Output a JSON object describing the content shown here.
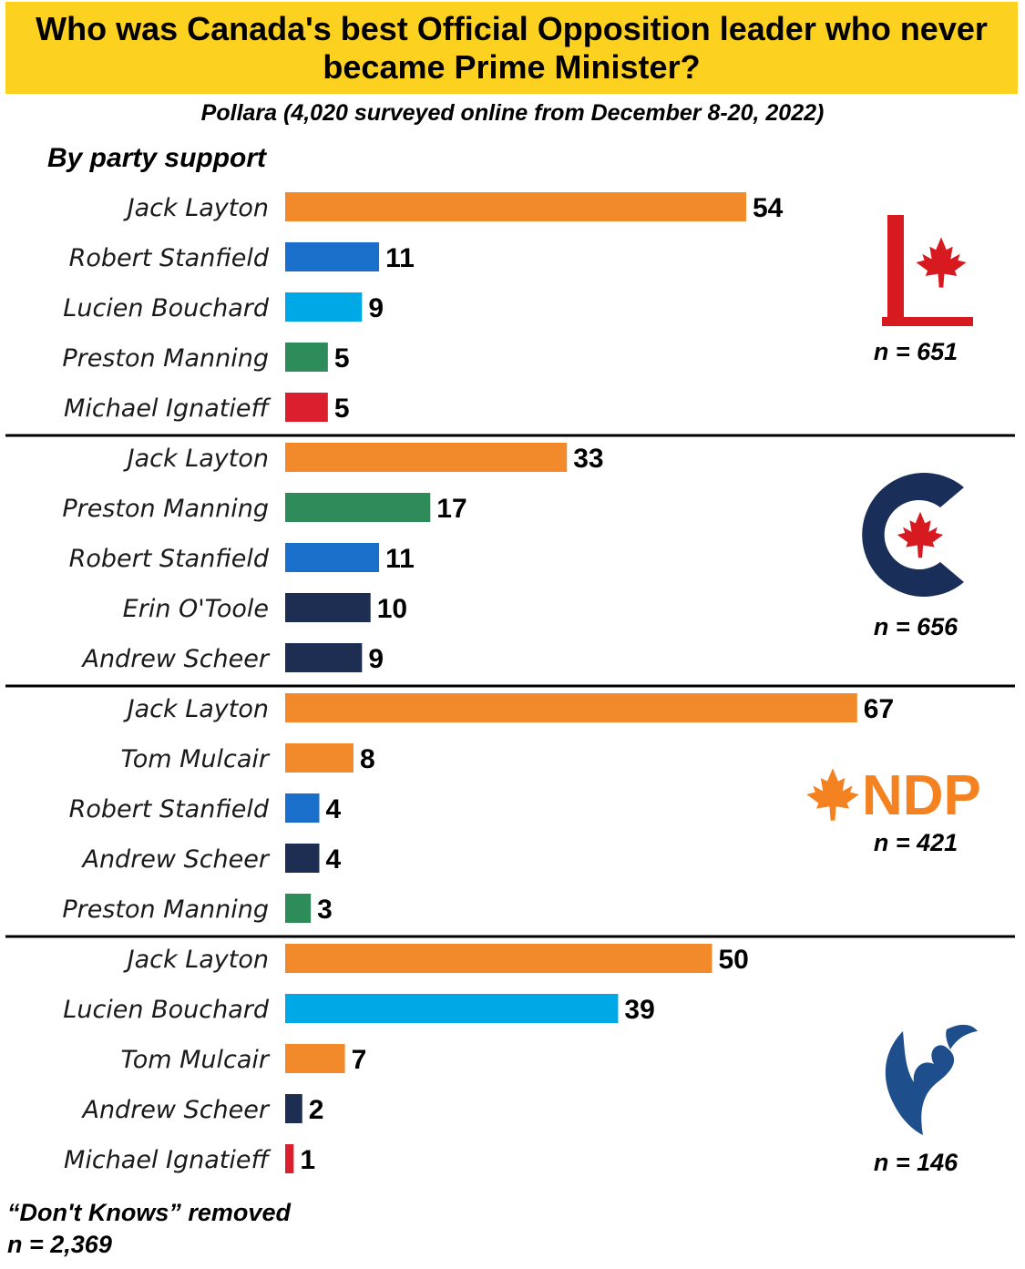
{
  "header": {
    "title": "Who was Canada's best Official Opposition leader who never became Prime Minister?",
    "subtitle": "Pollara (4,020 surveyed online from December 8-20, 2022)",
    "section_label": "By party support"
  },
  "footnotes": {
    "dont_knows": "“Don't Knows” removed",
    "total_n": "n = 2,369"
  },
  "colors": {
    "orange": "#f28a2b",
    "blue": "#1a6fcb",
    "lightblue": "#00a9e6",
    "green": "#2e8c5a",
    "red": "#dc1f2e",
    "navy": "#1e2d52",
    "title_bg": "#fcd11f",
    "liberal_red": "#d71920",
    "cpc_navy": "#1a2e5a",
    "ndp_orange": "#f58220",
    "bloc_blue": "#1f4e8c"
  },
  "chart_data": {
    "type": "bar",
    "orientation": "horizontal",
    "title": "Who was Canada's best Official Opposition leader who never became Prime Minister?",
    "subtitle": "Pollara (4,020 surveyed online from December 8-20, 2022)",
    "xlim": [
      0,
      70
    ],
    "grid": false,
    "panels": [
      {
        "logo": "liberal-logo",
        "n_label": "n = 651",
        "bars": [
          {
            "label": "Jack Layton",
            "value": 54,
            "color": "orange"
          },
          {
            "label": "Robert Stanfield",
            "value": 11,
            "color": "blue"
          },
          {
            "label": "Lucien Bouchard",
            "value": 9,
            "color": "lightblue"
          },
          {
            "label": "Preston Manning",
            "value": 5,
            "color": "green"
          },
          {
            "label": "Michael Ignatieff",
            "value": 5,
            "color": "red"
          }
        ]
      },
      {
        "logo": "conservative-logo",
        "n_label": "n = 656",
        "bars": [
          {
            "label": "Jack Layton",
            "value": 33,
            "color": "orange"
          },
          {
            "label": "Preston Manning",
            "value": 17,
            "color": "green"
          },
          {
            "label": "Robert Stanfield",
            "value": 11,
            "color": "blue"
          },
          {
            "label": "Erin O'Toole",
            "value": 10,
            "color": "navy"
          },
          {
            "label": "Andrew Scheer",
            "value": 9,
            "color": "navy"
          }
        ]
      },
      {
        "logo": "ndp-logo",
        "logo_text": "NDP",
        "n_label": "n = 421",
        "bars": [
          {
            "label": "Jack Layton",
            "value": 67,
            "color": "orange"
          },
          {
            "label": "Tom Mulcair",
            "value": 8,
            "color": "orange"
          },
          {
            "label": "Robert Stanfield",
            "value": 4,
            "color": "blue"
          },
          {
            "label": "Andrew Scheer",
            "value": 4,
            "color": "navy"
          },
          {
            "label": "Preston Manning",
            "value": 3,
            "color": "green"
          }
        ]
      },
      {
        "logo": "bloc-logo",
        "n_label": "n = 146",
        "bars": [
          {
            "label": "Jack Layton",
            "value": 50,
            "color": "orange"
          },
          {
            "label": "Lucien Bouchard",
            "value": 39,
            "color": "lightblue"
          },
          {
            "label": "Tom Mulcair",
            "value": 7,
            "color": "orange"
          },
          {
            "label": "Andrew Scheer",
            "value": 2,
            "color": "navy"
          },
          {
            "label": "Michael Ignatieff",
            "value": 1,
            "color": "red"
          }
        ]
      }
    ]
  }
}
